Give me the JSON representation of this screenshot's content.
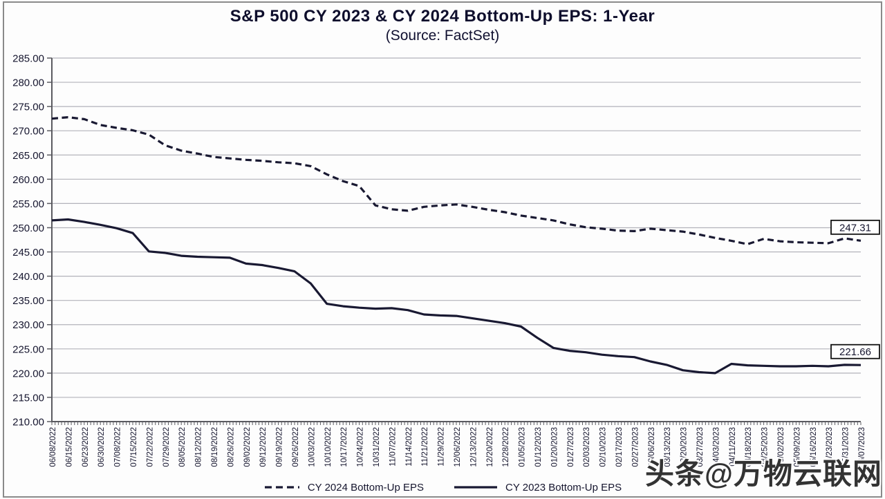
{
  "page": {
    "title": "S&P 500 CY 2023 & CY 2024 Bottom-Up EPS: 1-Year",
    "subtitle": "(Source: FactSet)",
    "watermark": "头条@万物云联网"
  },
  "colors": {
    "series_line": "#191932",
    "gridline": "#b2b2ba",
    "axis": "#5a5a60",
    "tick_label": "#15152e",
    "end_label_box_border": "#111111",
    "end_label_box_fill": "#ffffff"
  },
  "chart_data": {
    "type": "line",
    "title": "S&P 500 CY 2023 & CY 2024 Bottom-Up EPS: 1-Year",
    "subtitle": "(Source: FactSet)",
    "grid": "horizontal",
    "legend_position": "bottom",
    "ylim": [
      210,
      285
    ],
    "ytick_step": 5,
    "y_tick_labels": [
      "285.00",
      "280.00",
      "275.00",
      "270.00",
      "265.00",
      "260.00",
      "255.00",
      "250.00",
      "245.00",
      "240.00",
      "235.00",
      "230.00",
      "225.00",
      "220.00",
      "215.00",
      "210.00"
    ],
    "x_labels": [
      "06/08/2022",
      "06/15/2022",
      "06/23/2022",
      "06/30/2022",
      "07/08/2022",
      "07/15/2022",
      "07/22/2022",
      "07/29/2022",
      "08/05/2022",
      "08/12/2022",
      "08/19/2022",
      "08/26/2022",
      "09/02/2022",
      "09/12/2022",
      "09/19/2022",
      "09/26/2022",
      "10/03/2022",
      "10/10/2022",
      "10/17/2022",
      "10/24/2022",
      "10/31/2022",
      "11/07/2022",
      "11/14/2022",
      "11/21/2022",
      "11/29/2022",
      "12/06/2022",
      "12/13/2022",
      "12/20/2022",
      "12/28/2022",
      "01/05/2023",
      "01/12/2023",
      "01/20/2023",
      "01/27/2023",
      "02/03/2023",
      "02/10/2023",
      "02/17/2023",
      "02/27/2023",
      "03/06/2023",
      "03/13/2023",
      "03/20/2023",
      "03/27/2023",
      "04/03/2023",
      "04/11/2023",
      "04/18/2023",
      "04/25/2023",
      "05/02/2023",
      "05/09/2023",
      "05/16/2023",
      "05/23/2023",
      "05/31/2023",
      "06/07/2023"
    ],
    "series": [
      {
        "name": "CY 2024 Bottom-Up EPS",
        "style": "dashed",
        "color": "#191932",
        "end_label": "247.31",
        "values": [
          272.5,
          272.8,
          272.4,
          271.2,
          270.6,
          270.1,
          269.2,
          267.0,
          265.9,
          265.3,
          264.6,
          264.3,
          264.0,
          263.8,
          263.5,
          263.3,
          262.7,
          261.0,
          259.6,
          258.6,
          254.6,
          253.8,
          253.5,
          254.3,
          254.6,
          254.8,
          254.3,
          253.7,
          253.2,
          252.5,
          252.0,
          251.5,
          250.7,
          250.1,
          249.8,
          249.4,
          249.3,
          249.8,
          249.5,
          249.2,
          248.6,
          247.9,
          247.3,
          246.6,
          247.7,
          247.2,
          247.0,
          246.9,
          246.8,
          247.8,
          247.31
        ]
      },
      {
        "name": "CY 2023 Bottom-Up EPS",
        "style": "solid",
        "color": "#191932",
        "end_label": "221.66",
        "values": [
          251.5,
          251.7,
          251.2,
          250.6,
          249.9,
          248.9,
          245.1,
          244.8,
          244.2,
          244.0,
          243.9,
          243.8,
          242.6,
          242.3,
          241.7,
          241.0,
          238.5,
          234.3,
          233.8,
          233.5,
          233.3,
          233.4,
          233.0,
          232.1,
          231.9,
          231.8,
          231.3,
          230.8,
          230.3,
          229.6,
          227.3,
          225.2,
          224.6,
          224.3,
          223.8,
          223.5,
          223.3,
          222.4,
          221.7,
          220.6,
          220.2,
          220.0,
          221.9,
          221.6,
          221.5,
          221.4,
          221.4,
          221.5,
          221.4,
          221.7,
          221.66
        ]
      }
    ]
  }
}
